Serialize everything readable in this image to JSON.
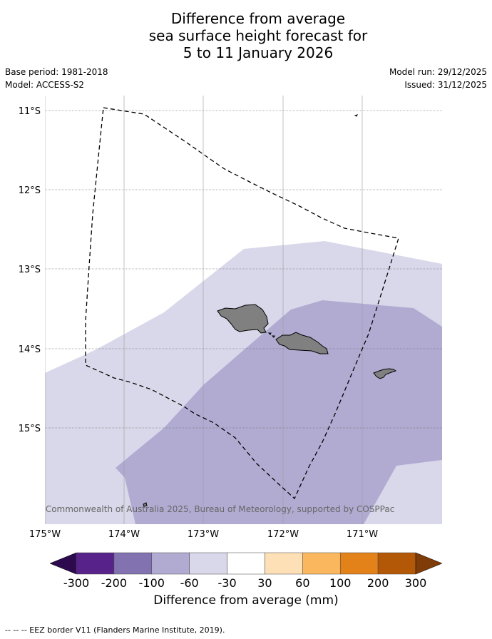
{
  "title": {
    "line1": "Difference from average",
    "line2": "sea surface height forecast for",
    "line3": "5 to 11 January 2026"
  },
  "meta": {
    "base_period": "Base period: 1981-2018",
    "model": "Model: ACCESS-S2",
    "model_run": "Model run: 29/12/2025",
    "issued": "Issued: 31/12/2025"
  },
  "map": {
    "lat_labels": [
      "11°S",
      "12°S",
      "13°S",
      "14°S",
      "15°S"
    ],
    "lon_labels": [
      "175°W",
      "174°W",
      "173°W",
      "172°W",
      "171°W"
    ],
    "copyright": "© Commonwealth of Australia 2025, Bureau of Meteorology, supported by COSPPac",
    "colors": {
      "band_minus30_minus60": "#d8d8ea",
      "band_minus60_minus100": "#b1abd2",
      "land": "#808080",
      "eez_line": "#000000"
    }
  },
  "colorbar": {
    "ticks": [
      "-300",
      "-200",
      "-100",
      "-60",
      "-30",
      "30",
      "60",
      "100",
      "200",
      "300"
    ],
    "colors": [
      "#2d0a4e",
      "#57238a",
      "#8272b0",
      "#b1abd2",
      "#d8d8ea",
      "#ffffff",
      "#fee0b6",
      "#fbb75e",
      "#e38219",
      "#b35806",
      "#7f3b08"
    ],
    "title": "Difference from average (mm)"
  },
  "footnote": "--  --  -- EEZ border V11 (Flanders Marine Institute, 2019)."
}
